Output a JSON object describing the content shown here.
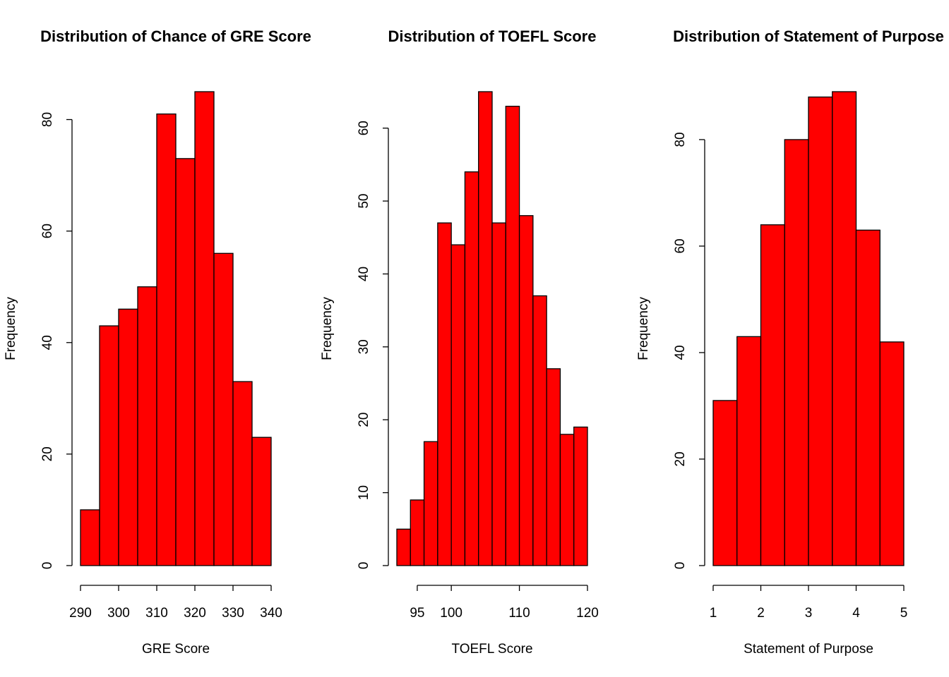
{
  "chart_data": [
    {
      "type": "histogram",
      "title": "Distribution of Chance of GRE Score",
      "xlabel": "GRE Score",
      "ylabel": "Frequency",
      "color": "#ff0000",
      "bins": [
        290,
        295,
        300,
        305,
        310,
        315,
        320,
        325,
        330,
        335,
        340
      ],
      "values": [
        10,
        43,
        46,
        50,
        81,
        73,
        85,
        56,
        33,
        23
      ],
      "xlim": [
        290,
        340
      ],
      "xticks": [
        290,
        300,
        310,
        320,
        330,
        340
      ],
      "ylim": [
        0,
        85
      ],
      "yticks": [
        0,
        20,
        40,
        60,
        80
      ]
    },
    {
      "type": "histogram",
      "title": "Distribution of TOEFL Score",
      "xlabel": "TOEFL Score",
      "ylabel": "Frequency",
      "color": "#ff0000",
      "bins": [
        92,
        94,
        96,
        98,
        100,
        102,
        104,
        106,
        108,
        110,
        112,
        114,
        116,
        118,
        120
      ],
      "values": [
        5,
        9,
        17,
        47,
        44,
        54,
        65,
        47,
        63,
        48,
        37,
        27,
        18,
        19
      ],
      "xlim": [
        92,
        120
      ],
      "xticks": [
        95,
        100,
        110,
        120
      ],
      "ylim": [
        0,
        65
      ],
      "yticks": [
        0,
        10,
        20,
        30,
        40,
        50,
        60
      ]
    },
    {
      "type": "histogram",
      "title": "Distribution of Statement of Purpose",
      "xlabel": "Statement of Purpose",
      "ylabel": "Frequency",
      "color": "#ff0000",
      "bins": [
        1,
        1.5,
        2,
        2.5,
        3,
        3.5,
        4,
        4.5,
        5
      ],
      "values": [
        31,
        43,
        64,
        80,
        88,
        89,
        63,
        42
      ],
      "xlim": [
        1,
        5
      ],
      "xticks": [
        1,
        2,
        3,
        4,
        5
      ],
      "ylim": [
        0,
        89
      ],
      "yticks": [
        0,
        20,
        40,
        60,
        80
      ]
    }
  ]
}
